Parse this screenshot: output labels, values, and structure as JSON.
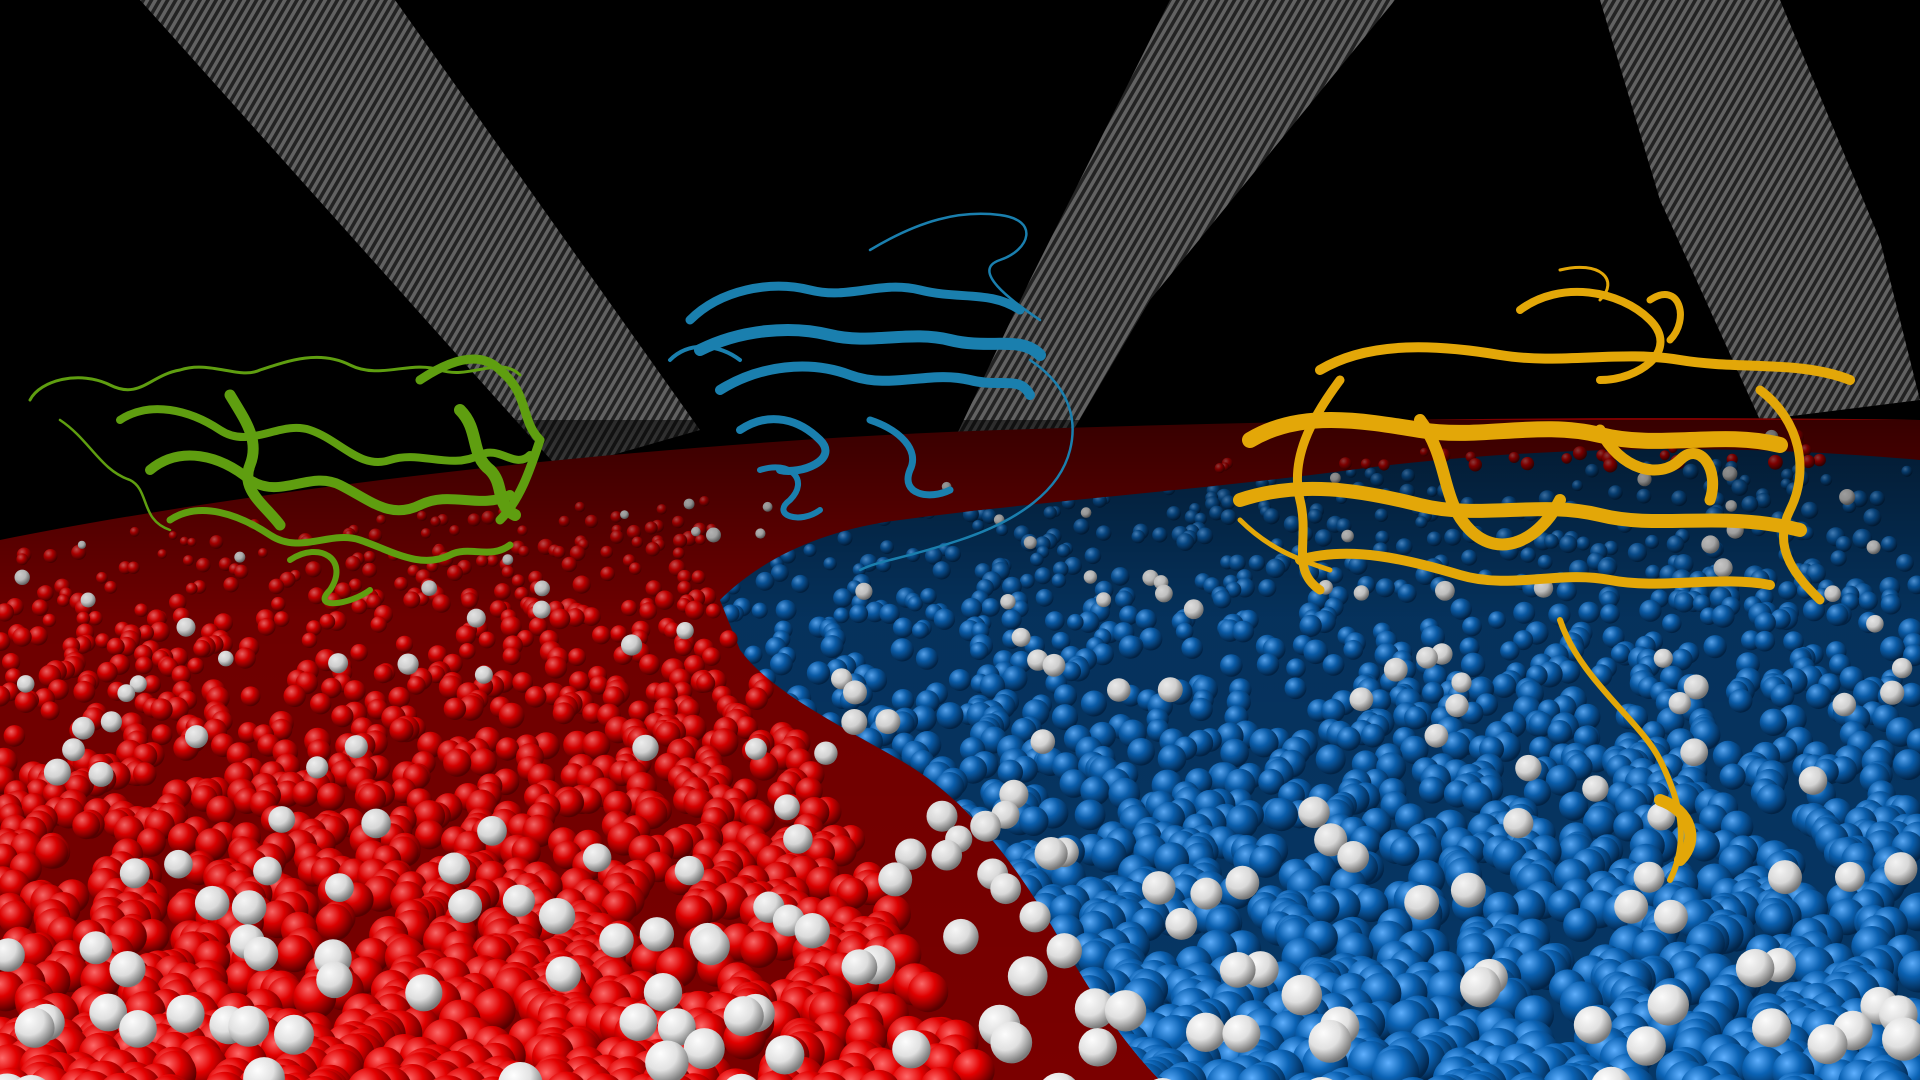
{
  "scene": {
    "background": "#000000",
    "membrane": {
      "region_colors": [
        "#e60000",
        "#0a63b4",
        "#eeeeee"
      ],
      "regions": [
        "red-lipid-domain",
        "blue-lipid-domain",
        "white-lipid-patches"
      ]
    },
    "filaments": {
      "color": "#6e6e6e",
      "count": 3
    },
    "proteins": [
      {
        "name": "green-protein",
        "color": "#5f9e10"
      },
      {
        "name": "teal-protein",
        "color": "#1a7fae"
      },
      {
        "name": "gold-protein",
        "color": "#e3a708"
      }
    ]
  }
}
